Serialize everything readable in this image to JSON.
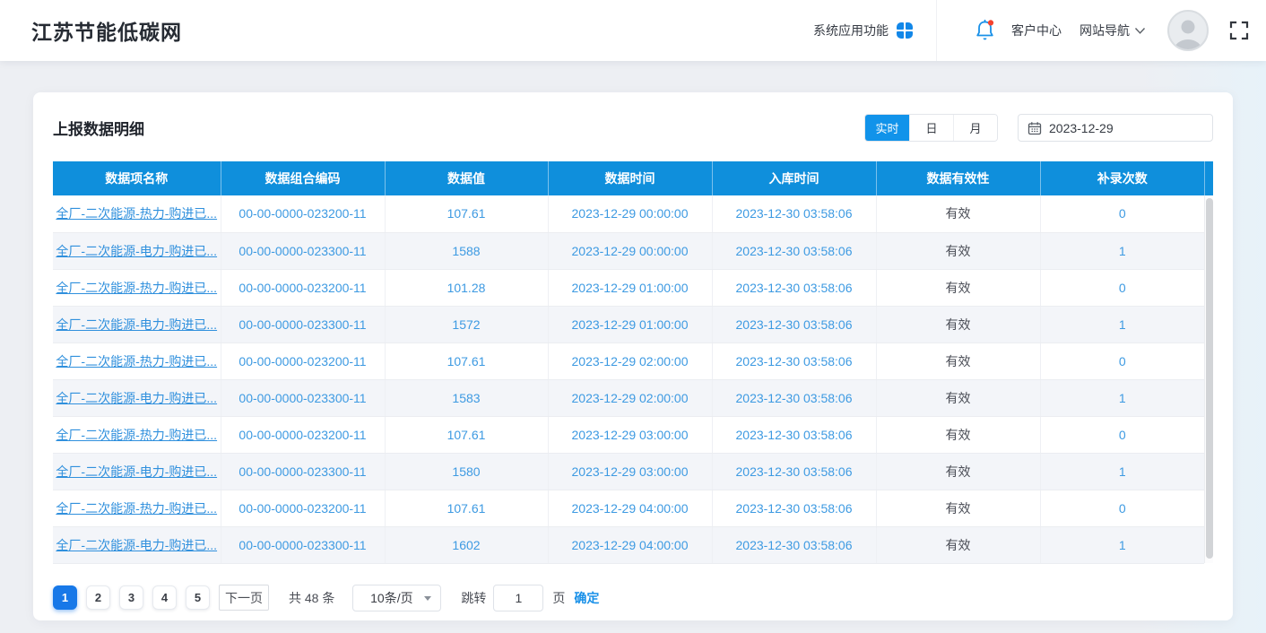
{
  "navbar": {
    "title": "江苏节能低碳网",
    "system_apps_label": "系统应用功能",
    "customer_center_label": "客户中心",
    "site_nav_label": "网站导航"
  },
  "panel": {
    "title": "上报数据明细",
    "view_tabs": [
      {
        "label": "实时",
        "active": true
      },
      {
        "label": "日",
        "active": false
      },
      {
        "label": "月",
        "active": false
      }
    ],
    "date_picker": {
      "value": "2023-12-29"
    }
  },
  "table": {
    "columns": [
      "数据项名称",
      "数据组合编码",
      "数据值",
      "数据时间",
      "入库时间",
      "数据有效性",
      "补录次数"
    ],
    "rows": [
      [
        "全厂-二次能源-热力-购进已...",
        "00-00-0000-023200-11",
        "107.61",
        "2023-12-29 00:00:00",
        "2023-12-30 03:58:06",
        "有效",
        "0"
      ],
      [
        "全厂-二次能源-电力-购进已...",
        "00-00-0000-023300-11",
        "1588",
        "2023-12-29 00:00:00",
        "2023-12-30 03:58:06",
        "有效",
        "1"
      ],
      [
        "全厂-二次能源-热力-购进已...",
        "00-00-0000-023200-11",
        "101.28",
        "2023-12-29 01:00:00",
        "2023-12-30 03:58:06",
        "有效",
        "0"
      ],
      [
        "全厂-二次能源-电力-购进已...",
        "00-00-0000-023300-11",
        "1572",
        "2023-12-29 01:00:00",
        "2023-12-30 03:58:06",
        "有效",
        "1"
      ],
      [
        "全厂-二次能源-热力-购进已...",
        "00-00-0000-023200-11",
        "107.61",
        "2023-12-29 02:00:00",
        "2023-12-30 03:58:06",
        "有效",
        "0"
      ],
      [
        "全厂-二次能源-电力-购进已...",
        "00-00-0000-023300-11",
        "1583",
        "2023-12-29 02:00:00",
        "2023-12-30 03:58:06",
        "有效",
        "1"
      ],
      [
        "全厂-二次能源-热力-购进已...",
        "00-00-0000-023200-11",
        "107.61",
        "2023-12-29 03:00:00",
        "2023-12-30 03:58:06",
        "有效",
        "0"
      ],
      [
        "全厂-二次能源-电力-购进已...",
        "00-00-0000-023300-11",
        "1580",
        "2023-12-29 03:00:00",
        "2023-12-30 03:58:06",
        "有效",
        "1"
      ],
      [
        "全厂-二次能源-热力-购进已...",
        "00-00-0000-023200-11",
        "107.61",
        "2023-12-29 04:00:00",
        "2023-12-30 03:58:06",
        "有效",
        "0"
      ],
      [
        "全厂-二次能源-电力-购进已...",
        "00-00-0000-023300-11",
        "1602",
        "2023-12-29 04:00:00",
        "2023-12-30 03:58:06",
        "有效",
        "1"
      ]
    ],
    "cell_names": [
      "cell-item-name",
      "cell-combo-code",
      "cell-value",
      "cell-data-time",
      "cell-store-time",
      "cell-validity",
      "cell-patch-count"
    ],
    "cell_styles": [
      "c-link",
      "c-blue",
      "c-blue",
      "c-blue",
      "c-blue",
      "c-dark",
      "c-blue"
    ]
  },
  "pagination": {
    "pages": [
      "1",
      "2",
      "3",
      "4",
      "5"
    ],
    "active_page": "1",
    "next_label": "下一页",
    "total_label": "共 48 条",
    "page_size_value": "10条/页",
    "jump_label": "跳转",
    "jump_value": "1",
    "page_unit_label": "页",
    "confirm_label": "确定"
  },
  "icons": {
    "apps": "apps-grid-icon",
    "bell": "notification-bell-icon",
    "chevron": "chevron-down-icon",
    "avatar": "user-avatar-icon",
    "fullscreen": "fullscreen-icon",
    "calendar": "calendar-icon"
  },
  "colors": {
    "accent_blue": "#1287e8",
    "table_header_blue": "#0f8fdc",
    "active_toggle_blue": "#1193ea",
    "active_page_blue": "#1778e8",
    "link_blue": "#3090dd",
    "cell_text_blue": "#3d9ae2",
    "validity_text": "#4b4e57",
    "notification_red": "#f5432e"
  }
}
